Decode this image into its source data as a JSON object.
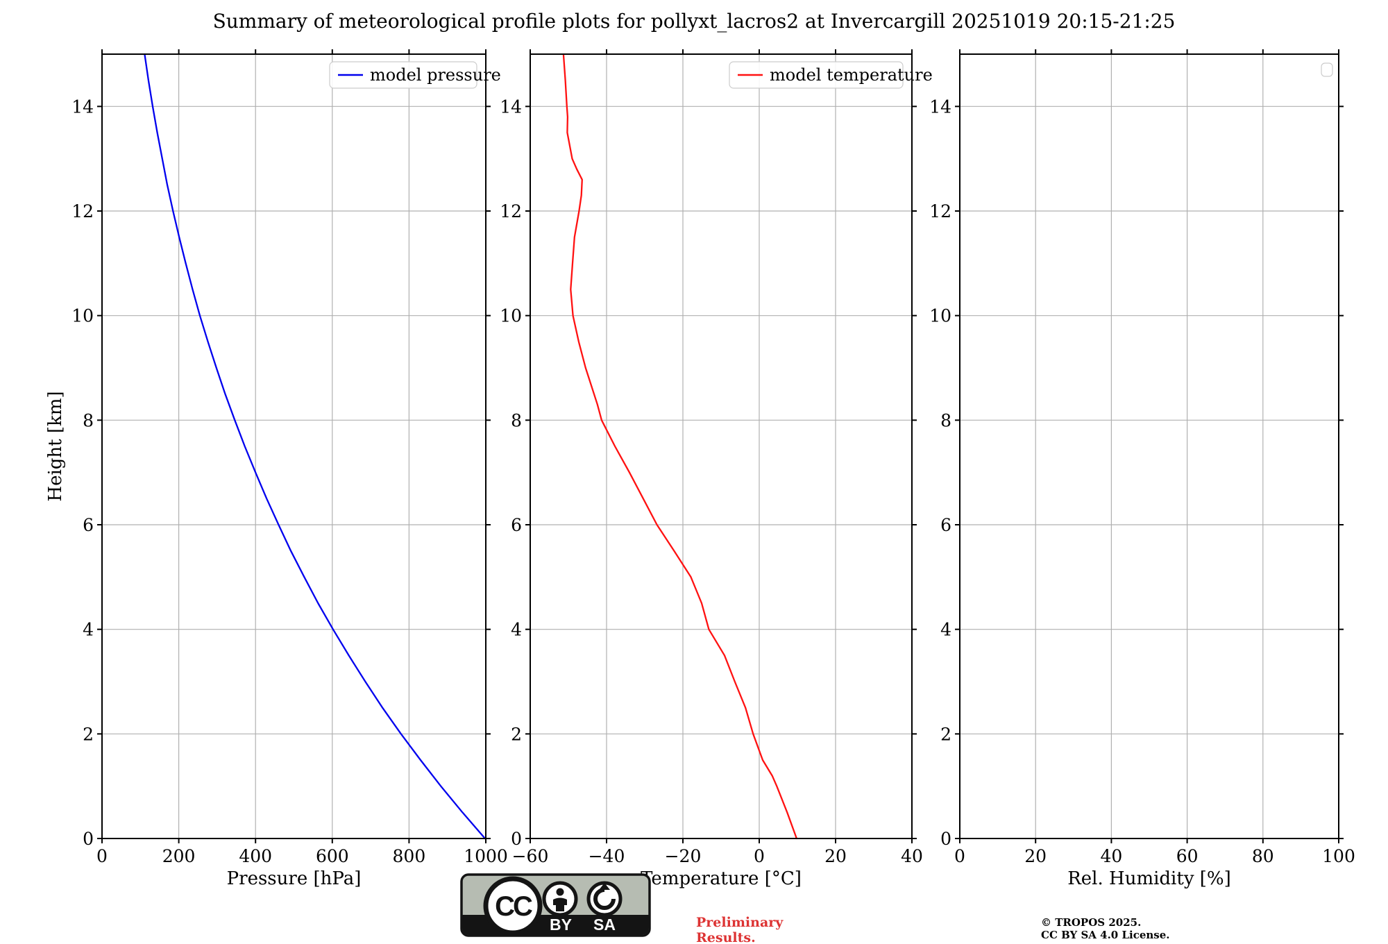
{
  "title": "Summary of meteorological profile plots for pollyxt_lacros2 at Invercargill 20251019 20:15-21:25",
  "colors": {
    "pressure_line": "#0000ee",
    "temperature_line": "#ff1111",
    "grid": "#b0b0b0",
    "axis": "#000000",
    "legend_border": "#cccccc",
    "preliminary_text": "#dd3333",
    "badge_background": "#b6bcb2",
    "badge_bar": "#141414"
  },
  "footer": {
    "badge": {
      "cc_label": "CC",
      "by_label": "BY",
      "sa_label": "SA"
    },
    "preliminary_line1": "Preliminary",
    "preliminary_line2": "Results.",
    "copyright_line1": "© TROPOS 2025.",
    "copyright_line2": "CC BY SA 4.0 License."
  },
  "chart_data": [
    {
      "type": "line",
      "xlabel": "Pressure [hPa]",
      "ylabel": "Height [km]",
      "xlim": [
        0,
        1000
      ],
      "xticks": [
        0,
        200,
        400,
        600,
        800,
        1000
      ],
      "ylim": [
        0,
        15
      ],
      "yticks": [
        0,
        2,
        4,
        6,
        8,
        10,
        12,
        14
      ],
      "grid": true,
      "legend_position": "upper right",
      "legend": {
        "label": "model pressure",
        "color_key": "pressure_line",
        "empty": false
      },
      "series": [
        {
          "name": "model pressure",
          "color_key": "pressure_line",
          "y_heights_km": [
            0,
            0.5,
            1,
            1.5,
            2,
            2.5,
            3,
            3.5,
            4,
            4.5,
            5,
            5.5,
            6,
            6.5,
            7,
            7.5,
            8,
            8.5,
            9,
            9.5,
            10,
            10.5,
            11,
            11.5,
            12,
            12.5,
            13,
            13.5,
            14,
            14.5,
            15
          ],
          "x_values": [
            998,
            939,
            883,
            830,
            779,
            731,
            686,
            643,
            602,
            563,
            527,
            492,
            460,
            429,
            400,
            372,
            346,
            321,
            298,
            276,
            255,
            236,
            218,
            201,
            185,
            170,
            157,
            144,
            132,
            121,
            111
          ]
        }
      ]
    },
    {
      "type": "line",
      "xlabel": "Temperature [°C]",
      "ylabel": "",
      "xlim": [
        -60,
        40
      ],
      "xticks": [
        -60,
        -40,
        -20,
        0,
        20,
        40
      ],
      "ylim": [
        0,
        15
      ],
      "yticks": [
        0,
        2,
        4,
        6,
        8,
        10,
        12,
        14
      ],
      "grid": true,
      "legend_position": "upper right",
      "legend": {
        "label": "model temperature",
        "color_key": "temperature_line",
        "empty": false
      },
      "series": [
        {
          "name": "model temperature",
          "color_key": "temperature_line",
          "y_heights_km": [
            0,
            0.5,
            1,
            1.2,
            1.5,
            2,
            2.5,
            3,
            3.5,
            4,
            4.5,
            5,
            5.5,
            6,
            6.5,
            7,
            7.5,
            8,
            8.3,
            9,
            9.5,
            10,
            10.5,
            11,
            11.5,
            12,
            12.3,
            12.6,
            12.8,
            13,
            13.5,
            13.8,
            14,
            14.5,
            15
          ],
          "x_values": [
            9.8,
            7.3,
            4.6,
            3.4,
            0.9,
            -1.6,
            -3.6,
            -6.4,
            -9.1,
            -13.2,
            -15.1,
            -17.9,
            -22.3,
            -26.8,
            -30.4,
            -34.0,
            -37.8,
            -41.3,
            -42.4,
            -45.5,
            -47.3,
            -48.8,
            -49.4,
            -48.9,
            -48.4,
            -47.2,
            -46.6,
            -46.4,
            -47.8,
            -49.0,
            -50.3,
            -50.2,
            -50.4,
            -50.8,
            -51.3
          ]
        }
      ]
    },
    {
      "type": "line",
      "xlabel": "Rel. Humidity [%]",
      "ylabel": "",
      "xlim": [
        0,
        100
      ],
      "xticks": [
        0,
        20,
        40,
        60,
        80,
        100
      ],
      "ylim": [
        0,
        15
      ],
      "yticks": [
        0,
        2,
        4,
        6,
        8,
        10,
        12,
        14
      ],
      "grid": true,
      "legend_position": "upper right",
      "legend": {
        "label": "",
        "color_key": "",
        "empty": true
      },
      "series": []
    }
  ]
}
